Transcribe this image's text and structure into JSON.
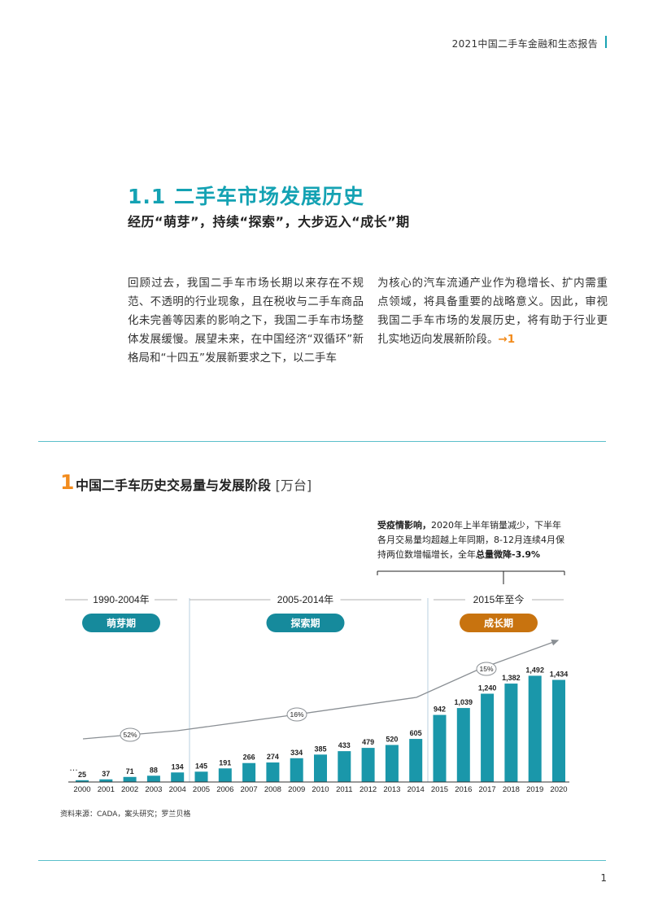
{
  "header": {
    "title": "2021中国二手车金融和生态报告"
  },
  "section": {
    "title": "1.1 二手车市场发展历史",
    "subtitle": "经历“萌芽”，持续“探索”，大步迈入“成长”期"
  },
  "body": {
    "col_left": "回顾过去，我国二手车市场长期以来存在不规范、不透明的行业现象，且在税收与二手车商品化未完善等因素的影响之下，我国二手车市场整体发展缓慢。展望未来，在中国经济“双循环”新格局和“十四五”发展新要求之下，以二手车",
    "col_right": "为核心的汽车流通产业作为稳增长、扩内需重点领域，将具备重要的战略意义。因此，审视我国二手车市场的发展历史，将有助于行业更扎实地迈向发展新阶段。",
    "ref": "→1"
  },
  "chart_heading": {
    "number": "1",
    "title": "中国二手车历史交易量与发展阶段",
    "unit": "[万台]"
  },
  "note": {
    "bold_lead": "受疫情影响，",
    "text": "2020年上半年销量减少，下半年各月交易量均超越上年同期，8-12月连续4月保持两位数增幅增长，全年",
    "bold_tail": "总量微降-3.9%"
  },
  "chart_data": {
    "type": "bar",
    "categories": [
      "2000",
      "2001",
      "2002",
      "2003",
      "2004",
      "2005",
      "2006",
      "2007",
      "2008",
      "2009",
      "2010",
      "2011",
      "2012",
      "2013",
      "2014",
      "2015",
      "2016",
      "2017",
      "2018",
      "2019",
      "2020"
    ],
    "values": [
      25,
      37,
      71,
      88,
      134,
      145,
      191,
      266,
      274,
      334,
      385,
      433,
      479,
      520,
      605,
      942,
      1039,
      1240,
      1382,
      1492,
      1434
    ],
    "value_labels": [
      "25",
      "37",
      "71",
      "88",
      "134",
      "145",
      "191",
      "266",
      "274",
      "334",
      "385",
      "433",
      "479",
      "520",
      "605",
      "942",
      "1,039",
      "1,240",
      "1,382",
      "1,492",
      "1,434"
    ],
    "leading_ellipsis": "…",
    "phases": [
      {
        "period": "1990-2004年",
        "name": "萌芽期",
        "growth": "52%",
        "color": "#168a9c"
      },
      {
        "period": "2005-2014年",
        "name": "探索期",
        "growth": "16%",
        "color": "#168a9c"
      },
      {
        "period": "2015年至今",
        "name": "成长期",
        "growth": "15%",
        "color": "#c8730f"
      }
    ],
    "colors": {
      "bar": "#1a97aa",
      "arrow": "#8a8f94",
      "rule": "#5bbfca"
    },
    "ylim": [
      0,
      1600
    ]
  },
  "source": "资料来源：CADA，案头研究；罗兰贝格",
  "page_number": "1"
}
